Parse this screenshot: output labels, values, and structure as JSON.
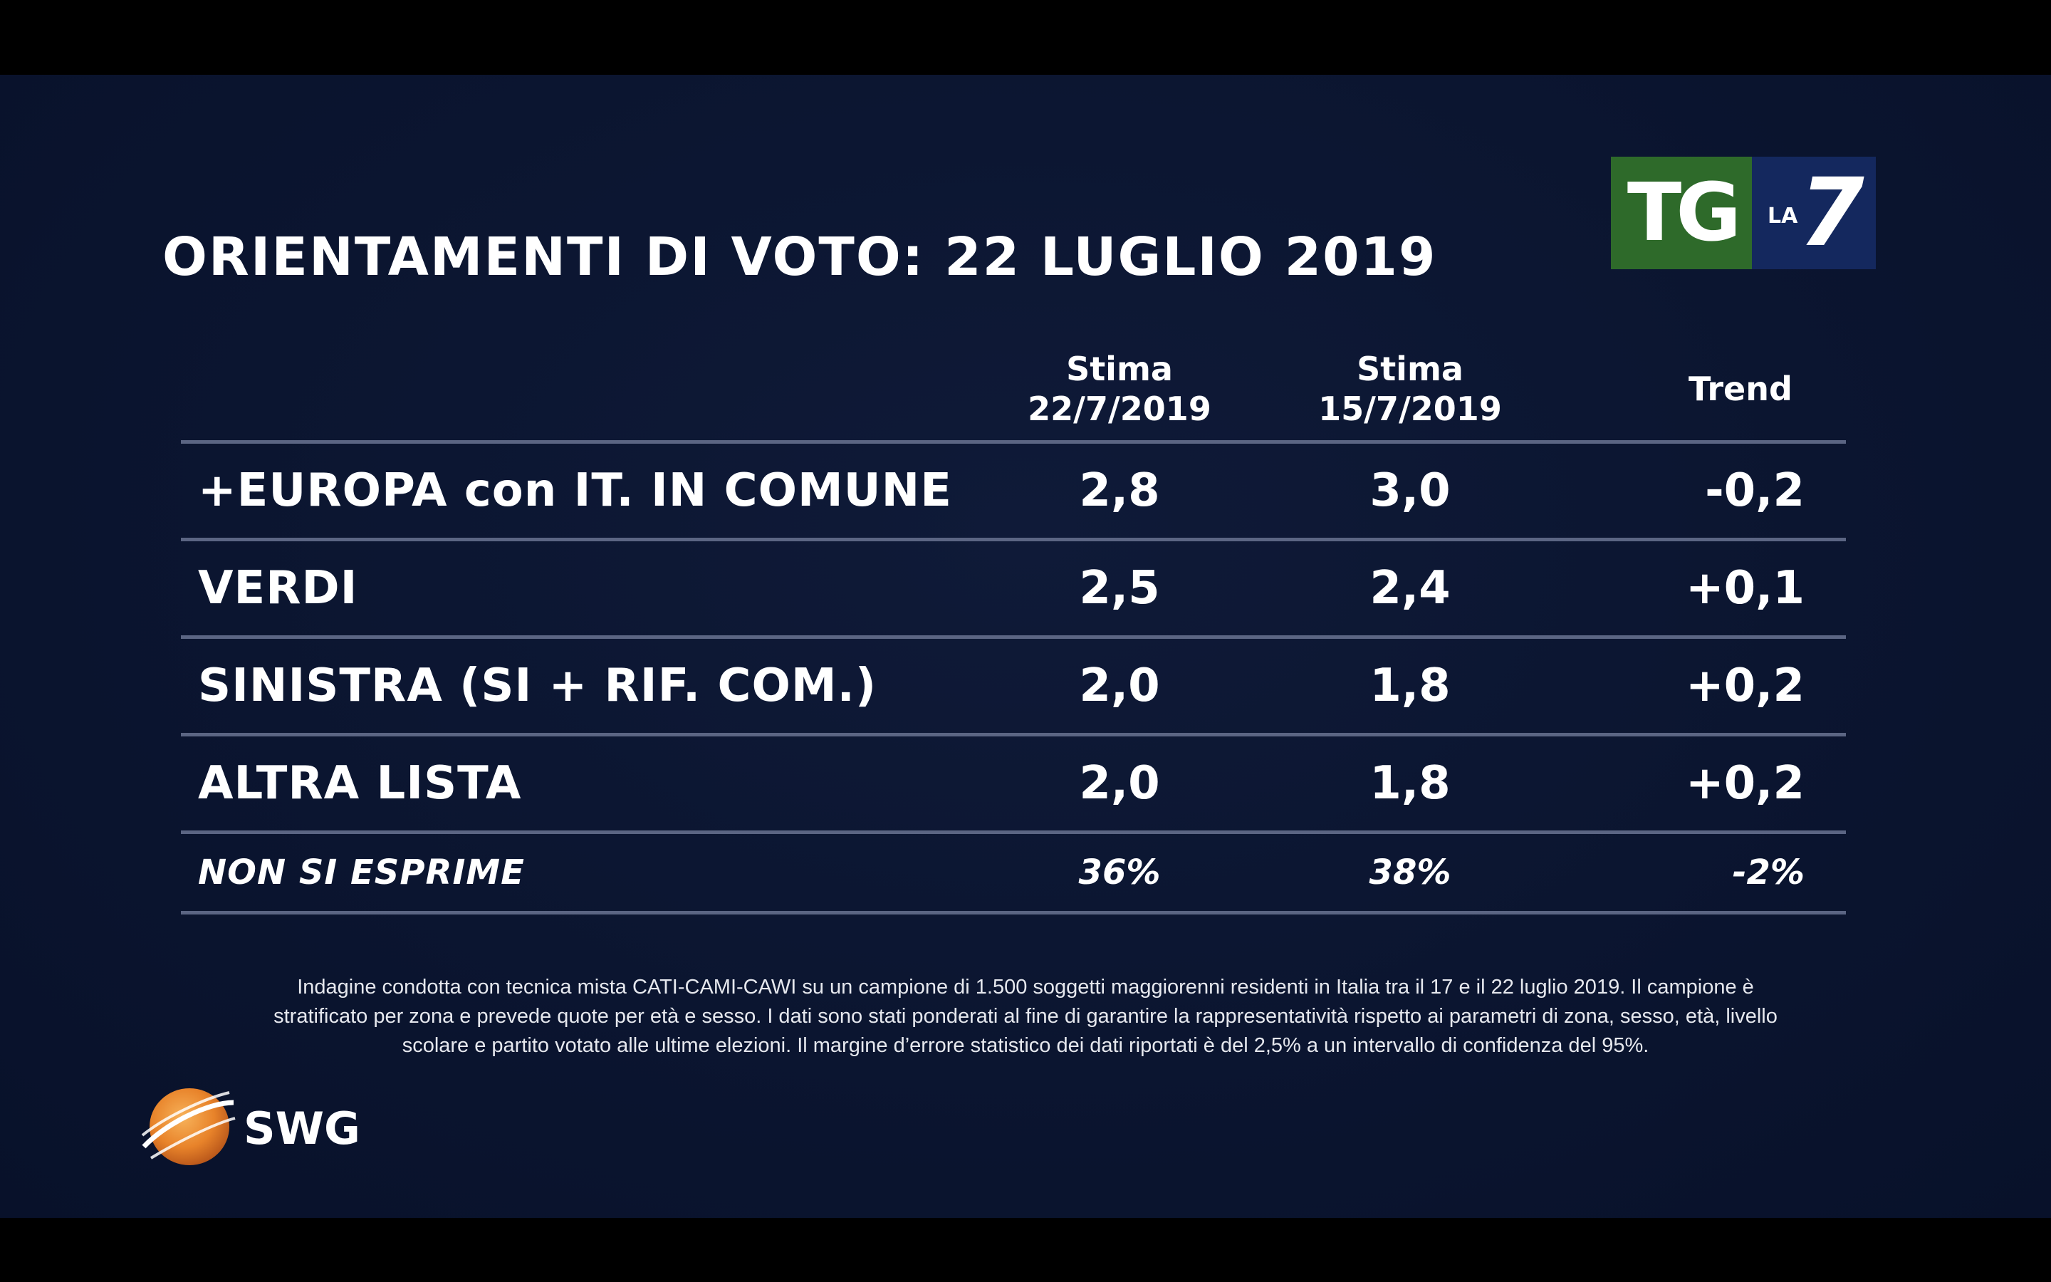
{
  "title": "ORIENTAMENTI DI VOTO: 22 LUGLIO 2019",
  "logo": {
    "tg": "TG",
    "la": "LA",
    "seven": "7",
    "colors": {
      "tg_green": "#2e6a2a",
      "la7_blue": "#14285e"
    }
  },
  "chart_data": {
    "type": "table",
    "columns": [
      {
        "line1": "Stima",
        "line2": "22/7/2019"
      },
      {
        "line1": "Stima",
        "line2": "15/7/2019"
      },
      {
        "line1": "Trend",
        "line2": ""
      }
    ],
    "rows": [
      {
        "label": "+EUROPA con IT. IN COMUNE",
        "stima_22": "2,8",
        "stima_15": "3,0",
        "trend": "-0,2"
      },
      {
        "label": "VERDI",
        "stima_22": "2,5",
        "stima_15": "2,4",
        "trend": "+0,1"
      },
      {
        "label": "SINISTRA (SI + RIF. COM.)",
        "stima_22": "2,0",
        "stima_15": "1,8",
        "trend": "+0,2"
      },
      {
        "label": "ALTRA LISTA",
        "stima_22": "2,0",
        "stima_15": "1,8",
        "trend": "+0,2"
      },
      {
        "label": "NON SI ESPRIME",
        "stima_22": "36%",
        "stima_15": "38%",
        "trend": "-2%"
      }
    ]
  },
  "footnote": [
    "Indagine condotta con tecnica mista CATI-CAMI-CAWI su un campione di 1.500 soggetti maggiorenni residenti in Italia tra il 17 e il 22  luglio 2019. Il campione è",
    "stratificato per zona e prevede quote per età e sesso. I dati sono stati ponderati al fine di garantire la rappresentatività rispetto ai parametri di zona, sesso, età, livello",
    "scolare e partito votato alle ultime elezioni. Il margine d’errore statistico dei dati riportati è del 2,5% a un intervallo di confidenza del 95%."
  ],
  "swg": {
    "name": "SWG",
    "globe_color": "#e8832a"
  }
}
